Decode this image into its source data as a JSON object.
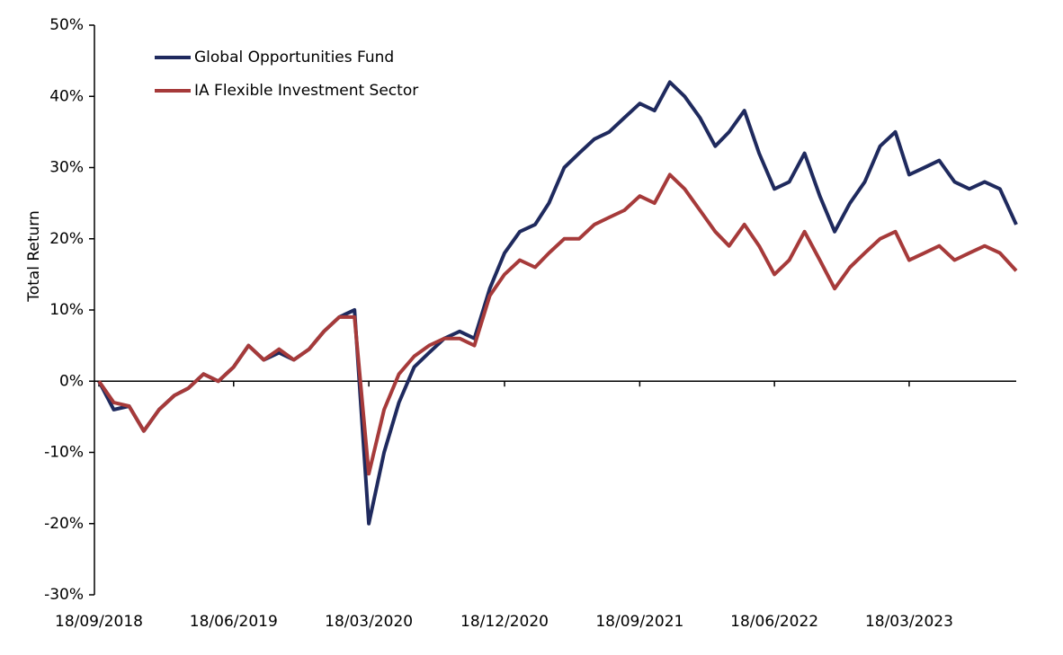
{
  "chart_data": {
    "type": "line",
    "y_label": "Total Return",
    "x": [
      "18/09/2018",
      "18/10/2018",
      "18/11/2018",
      "18/12/2018",
      "18/01/2019",
      "18/02/2019",
      "18/03/2019",
      "18/04/2019",
      "18/05/2019",
      "18/06/2019",
      "18/07/2019",
      "18/08/2019",
      "18/09/2019",
      "18/10/2019",
      "18/11/2019",
      "18/12/2019",
      "18/01/2020",
      "18/02/2020",
      "18/03/2020",
      "18/04/2020",
      "18/05/2020",
      "18/06/2020",
      "18/07/2020",
      "18/08/2020",
      "18/09/2020",
      "18/10/2020",
      "18/11/2020",
      "18/12/2020",
      "18/01/2021",
      "18/02/2021",
      "18/03/2021",
      "18/04/2021",
      "18/05/2021",
      "18/06/2021",
      "18/07/2021",
      "18/08/2021",
      "18/09/2021",
      "18/10/2021",
      "18/11/2021",
      "18/12/2021",
      "18/01/2022",
      "18/02/2022",
      "18/03/2022",
      "18/04/2022",
      "18/05/2022",
      "18/06/2022",
      "18/07/2022",
      "18/08/2022",
      "18/09/2022",
      "18/10/2022",
      "18/11/2022",
      "18/12/2022",
      "18/01/2023",
      "18/02/2023",
      "18/03/2023",
      "18/04/2023",
      "18/05/2023",
      "18/06/2023",
      "18/07/2023",
      "18/08/2023",
      "18/09/2023",
      "21/10/2023"
    ],
    "series": [
      {
        "name": "Global Opportunities Fund",
        "color": "#1f2a5e",
        "values": [
          0,
          -4,
          -3.5,
          -7,
          -4,
          -2,
          -1,
          1,
          0,
          2,
          5,
          3,
          4,
          3,
          4.5,
          7,
          9,
          10,
          -20,
          -10,
          -3,
          2,
          4,
          6,
          7,
          6,
          13,
          18,
          21,
          22,
          25,
          30,
          32,
          34,
          35,
          37,
          39,
          38,
          42,
          40,
          37,
          33,
          35,
          38,
          32,
          27,
          28,
          32,
          26,
          21,
          25,
          28,
          33,
          35,
          29,
          30,
          31,
          28,
          27,
          28,
          27,
          22
        ]
      },
      {
        "name": "IA Flexible Investment Sector",
        "color": "#a63a3a",
        "values": [
          0,
          -3,
          -3.5,
          -7,
          -4,
          -2,
          -1,
          1,
          0,
          2,
          5,
          3,
          4.5,
          3,
          4.5,
          7,
          9,
          9,
          -13,
          -4,
          1,
          3.5,
          5,
          6,
          6,
          5,
          12,
          15,
          17,
          16,
          18,
          20,
          20,
          22,
          23,
          24,
          26,
          25,
          29,
          27,
          24,
          21,
          19,
          22,
          19,
          15,
          17,
          21,
          17,
          13,
          16,
          18,
          20,
          21,
          17,
          18,
          19,
          17,
          18,
          19,
          18,
          15.5
        ]
      }
    ],
    "xlim": [
      "18/09/2018",
      "21/10/2023"
    ],
    "xticks": [
      "18/09/2018",
      "18/06/2019",
      "18/03/2020",
      "18/12/2020",
      "18/09/2021",
      "18/06/2022",
      "18/03/2023"
    ],
    "ylim": [
      -30,
      50
    ],
    "yticks": [
      {
        "value": -30,
        "label": "-30%"
      },
      {
        "value": -20,
        "label": "-20%"
      },
      {
        "value": -10,
        "label": "-10%"
      },
      {
        "value": 0,
        "label": "0%"
      },
      {
        "value": 10,
        "label": "10%"
      },
      {
        "value": 20,
        "label": "20%"
      },
      {
        "value": 30,
        "label": "30%"
      },
      {
        "value": 40,
        "label": "40%"
      },
      {
        "value": 50,
        "label": "50%"
      }
    ],
    "legend": "upper left"
  }
}
